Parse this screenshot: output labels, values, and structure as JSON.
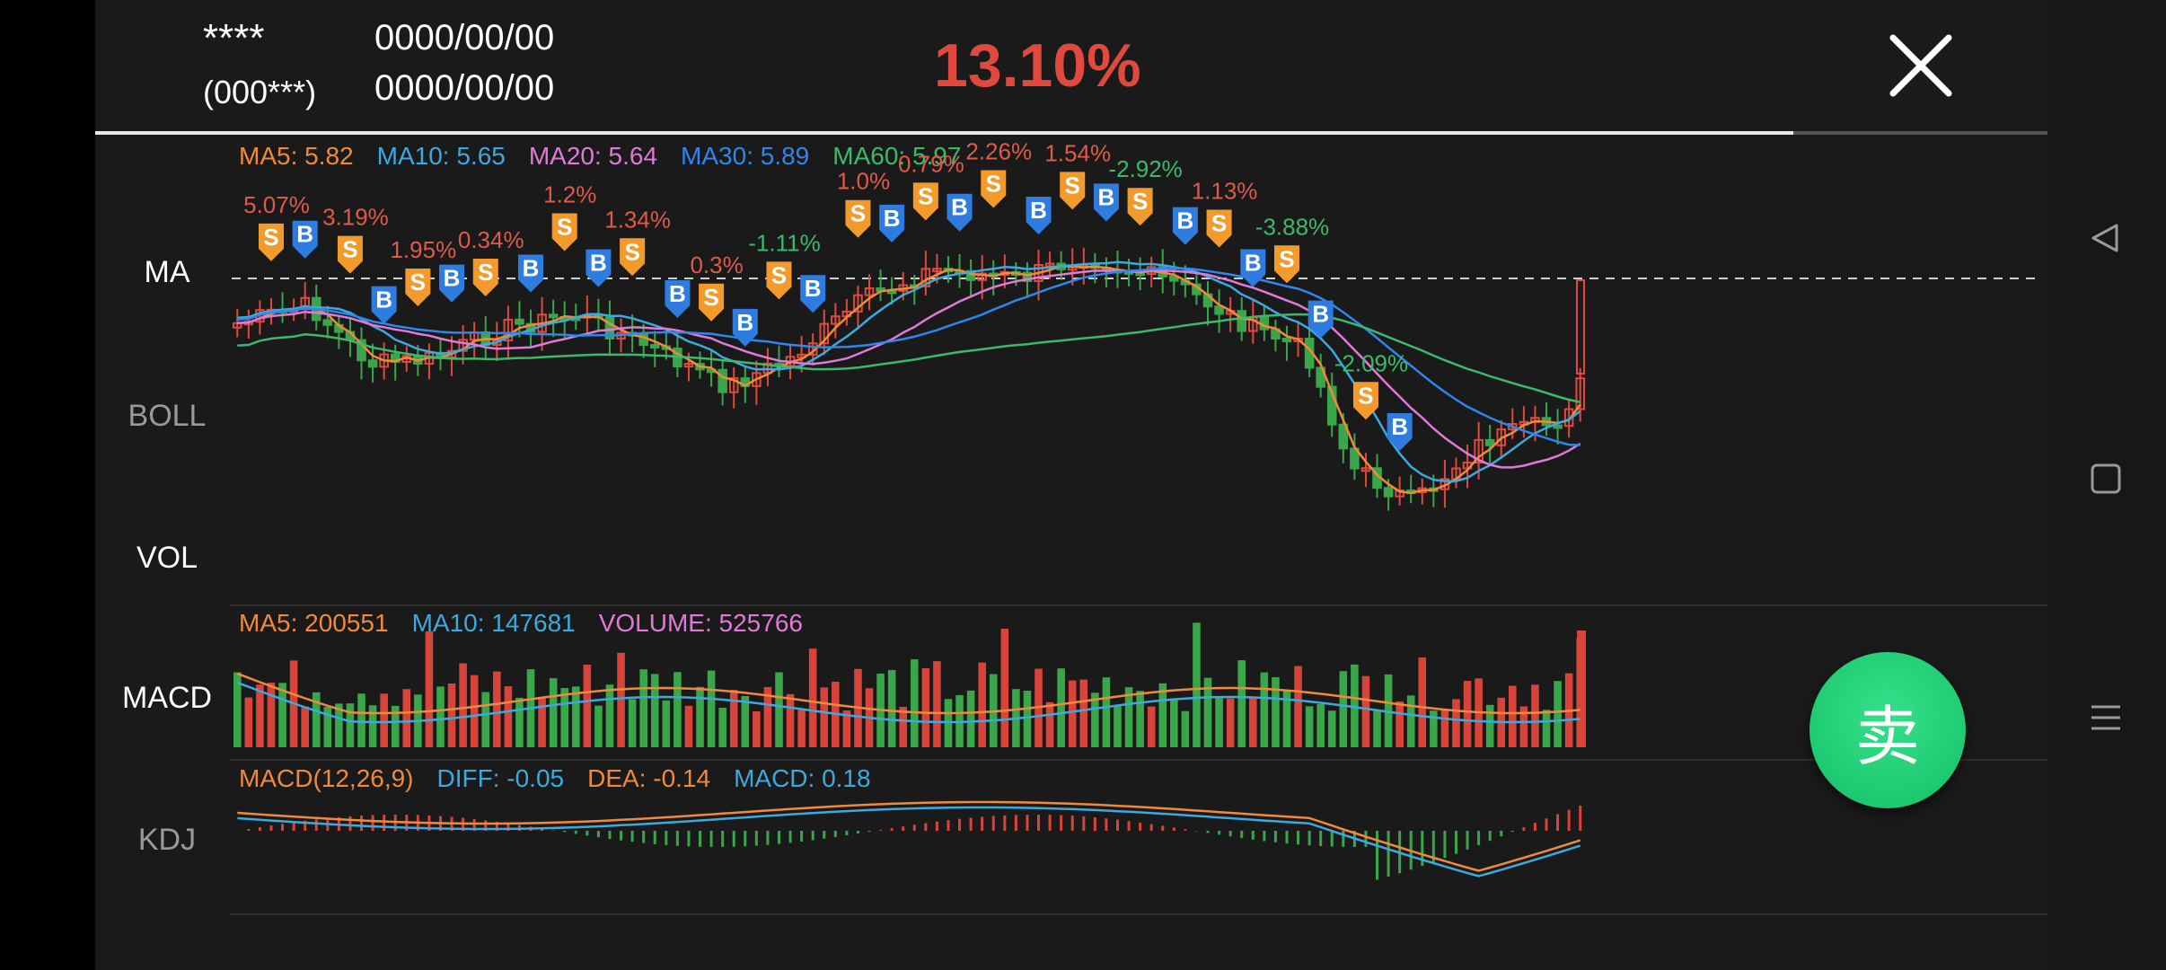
{
  "header": {
    "name_masked": "****",
    "code_masked": "(000***)",
    "date_start": "0000/00/00",
    "date_end": "0000/00/00",
    "return_pct": "13.10%",
    "progress": 0.87
  },
  "side_labels": {
    "ma": "MA",
    "boll": "BOLL",
    "vol": "VOL",
    "macd": "MACD",
    "kdj": "KDJ"
  },
  "legends": {
    "ma": [
      {
        "text": "MA5: 5.82",
        "color": "#f08a3a"
      },
      {
        "text": "MA10: 5.65",
        "color": "#3aaae0"
      },
      {
        "text": "MA20: 5.64",
        "color": "#e07ad8"
      },
      {
        "text": "MA30: 5.89",
        "color": "#2f86ee"
      },
      {
        "text": "MA60: 5.97",
        "color": "#3aba6a"
      }
    ],
    "vol": [
      {
        "text": "MA5: 200551",
        "color": "#f08a3a"
      },
      {
        "text": "MA10: 147681",
        "color": "#3aaae0"
      },
      {
        "text": "VOLUME: 525766",
        "color": "#e07ad8"
      }
    ],
    "macd": [
      {
        "text": "MACD(12,26,9)",
        "color": "#f08a3a"
      },
      {
        "text": "DIFF: -0.05",
        "color": "#3aaae0"
      },
      {
        "text": "DEA: -0.14",
        "color": "#f08a3a"
      },
      {
        "text": "MACD: 0.18",
        "color": "#3aaae0"
      }
    ]
  },
  "trade_markers": [
    {
      "type": "S",
      "label": "5.07%",
      "label_color": "#e05a4a"
    },
    {
      "type": "B"
    },
    {
      "type": "S",
      "label": "3.19%",
      "label_color": "#e05a4a"
    },
    {
      "type": "B"
    },
    {
      "type": "S",
      "label": "1.95%",
      "label_color": "#e05a4a"
    },
    {
      "type": "B"
    },
    {
      "type": "S",
      "label": "0.34%",
      "label_color": "#e05a4a"
    },
    {
      "type": "B"
    },
    {
      "type": "S",
      "label": "1.2%",
      "label_color": "#e05a4a"
    },
    {
      "type": "B"
    },
    {
      "type": "S",
      "label": "1.34%",
      "label_color": "#e05a4a"
    },
    {
      "type": "B"
    },
    {
      "type": "S",
      "label": "0.3%",
      "label_color": "#e05a4a"
    },
    {
      "type": "B"
    },
    {
      "type": "S",
      "label": "-1.11%",
      "label_color": "#3aba6a"
    },
    {
      "type": "B"
    },
    {
      "type": "S",
      "label": "1.0%",
      "label_color": "#e05a4a"
    },
    {
      "type": "B"
    },
    {
      "type": "S",
      "label": "0.79%",
      "label_color": "#e05a4a"
    },
    {
      "type": "B"
    },
    {
      "type": "S",
      "label": "2.26%",
      "label_color": "#e05a4a"
    },
    {
      "type": "B"
    },
    {
      "type": "S",
      "label": "1.54%",
      "label_color": "#e05a4a"
    },
    {
      "type": "B"
    },
    {
      "type": "S",
      "label": "-2.92%",
      "label_color": "#3aba6a"
    },
    {
      "type": "B"
    },
    {
      "type": "S",
      "label": "1.13%",
      "label_color": "#e05a4a"
    },
    {
      "type": "B"
    },
    {
      "type": "S",
      "label": "-3.88%",
      "label_color": "#3aba6a"
    },
    {
      "type": "B"
    },
    {
      "type": "S",
      "label": "-2.09%",
      "label_color": "#3aba6a"
    },
    {
      "type": "B"
    }
  ],
  "sell_button": {
    "label": "卖"
  },
  "icons": {
    "close": "close-icon",
    "back": "triangle-back-icon",
    "home": "square-home-icon",
    "menu": "hamburger-menu-icon"
  },
  "colors": {
    "up": "#e04a3e",
    "down": "#3aa64a",
    "return": "#e04a3e",
    "buy_marker": "#2f7ce0",
    "sell_marker": "#f39a2c",
    "sell_button": "#1fcf70"
  }
}
